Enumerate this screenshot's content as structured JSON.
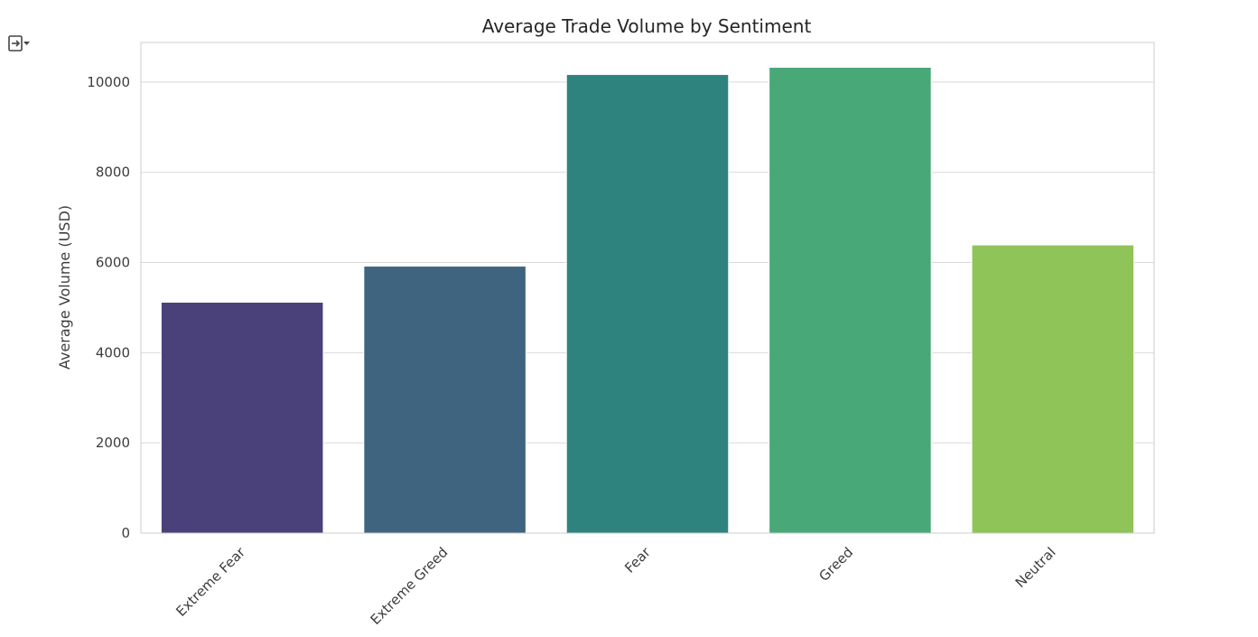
{
  "output_toggle": {
    "icon": "output-collapse-icon"
  },
  "chart_data": {
    "type": "bar",
    "title": "Average Trade Volume by Sentiment",
    "xlabel": "",
    "ylabel": "Average Volume (USD)",
    "categories": [
      "Extreme Fear",
      "Extreme Greed",
      "Fear",
      "Greed",
      "Neutral"
    ],
    "values": [
      5120,
      5920,
      10170,
      10330,
      6390
    ],
    "colors": [
      "#4a417a",
      "#3e6480",
      "#2f837e",
      "#48a878",
      "#8fc458"
    ],
    "ylim": [
      0,
      10880
    ],
    "yticks": [
      0,
      2000,
      4000,
      6000,
      8000,
      10000
    ],
    "ytick_labels": [
      "0",
      "2000",
      "4000",
      "6000",
      "8000",
      "10000"
    ],
    "grid": true,
    "x_tick_rotation": 45
  }
}
